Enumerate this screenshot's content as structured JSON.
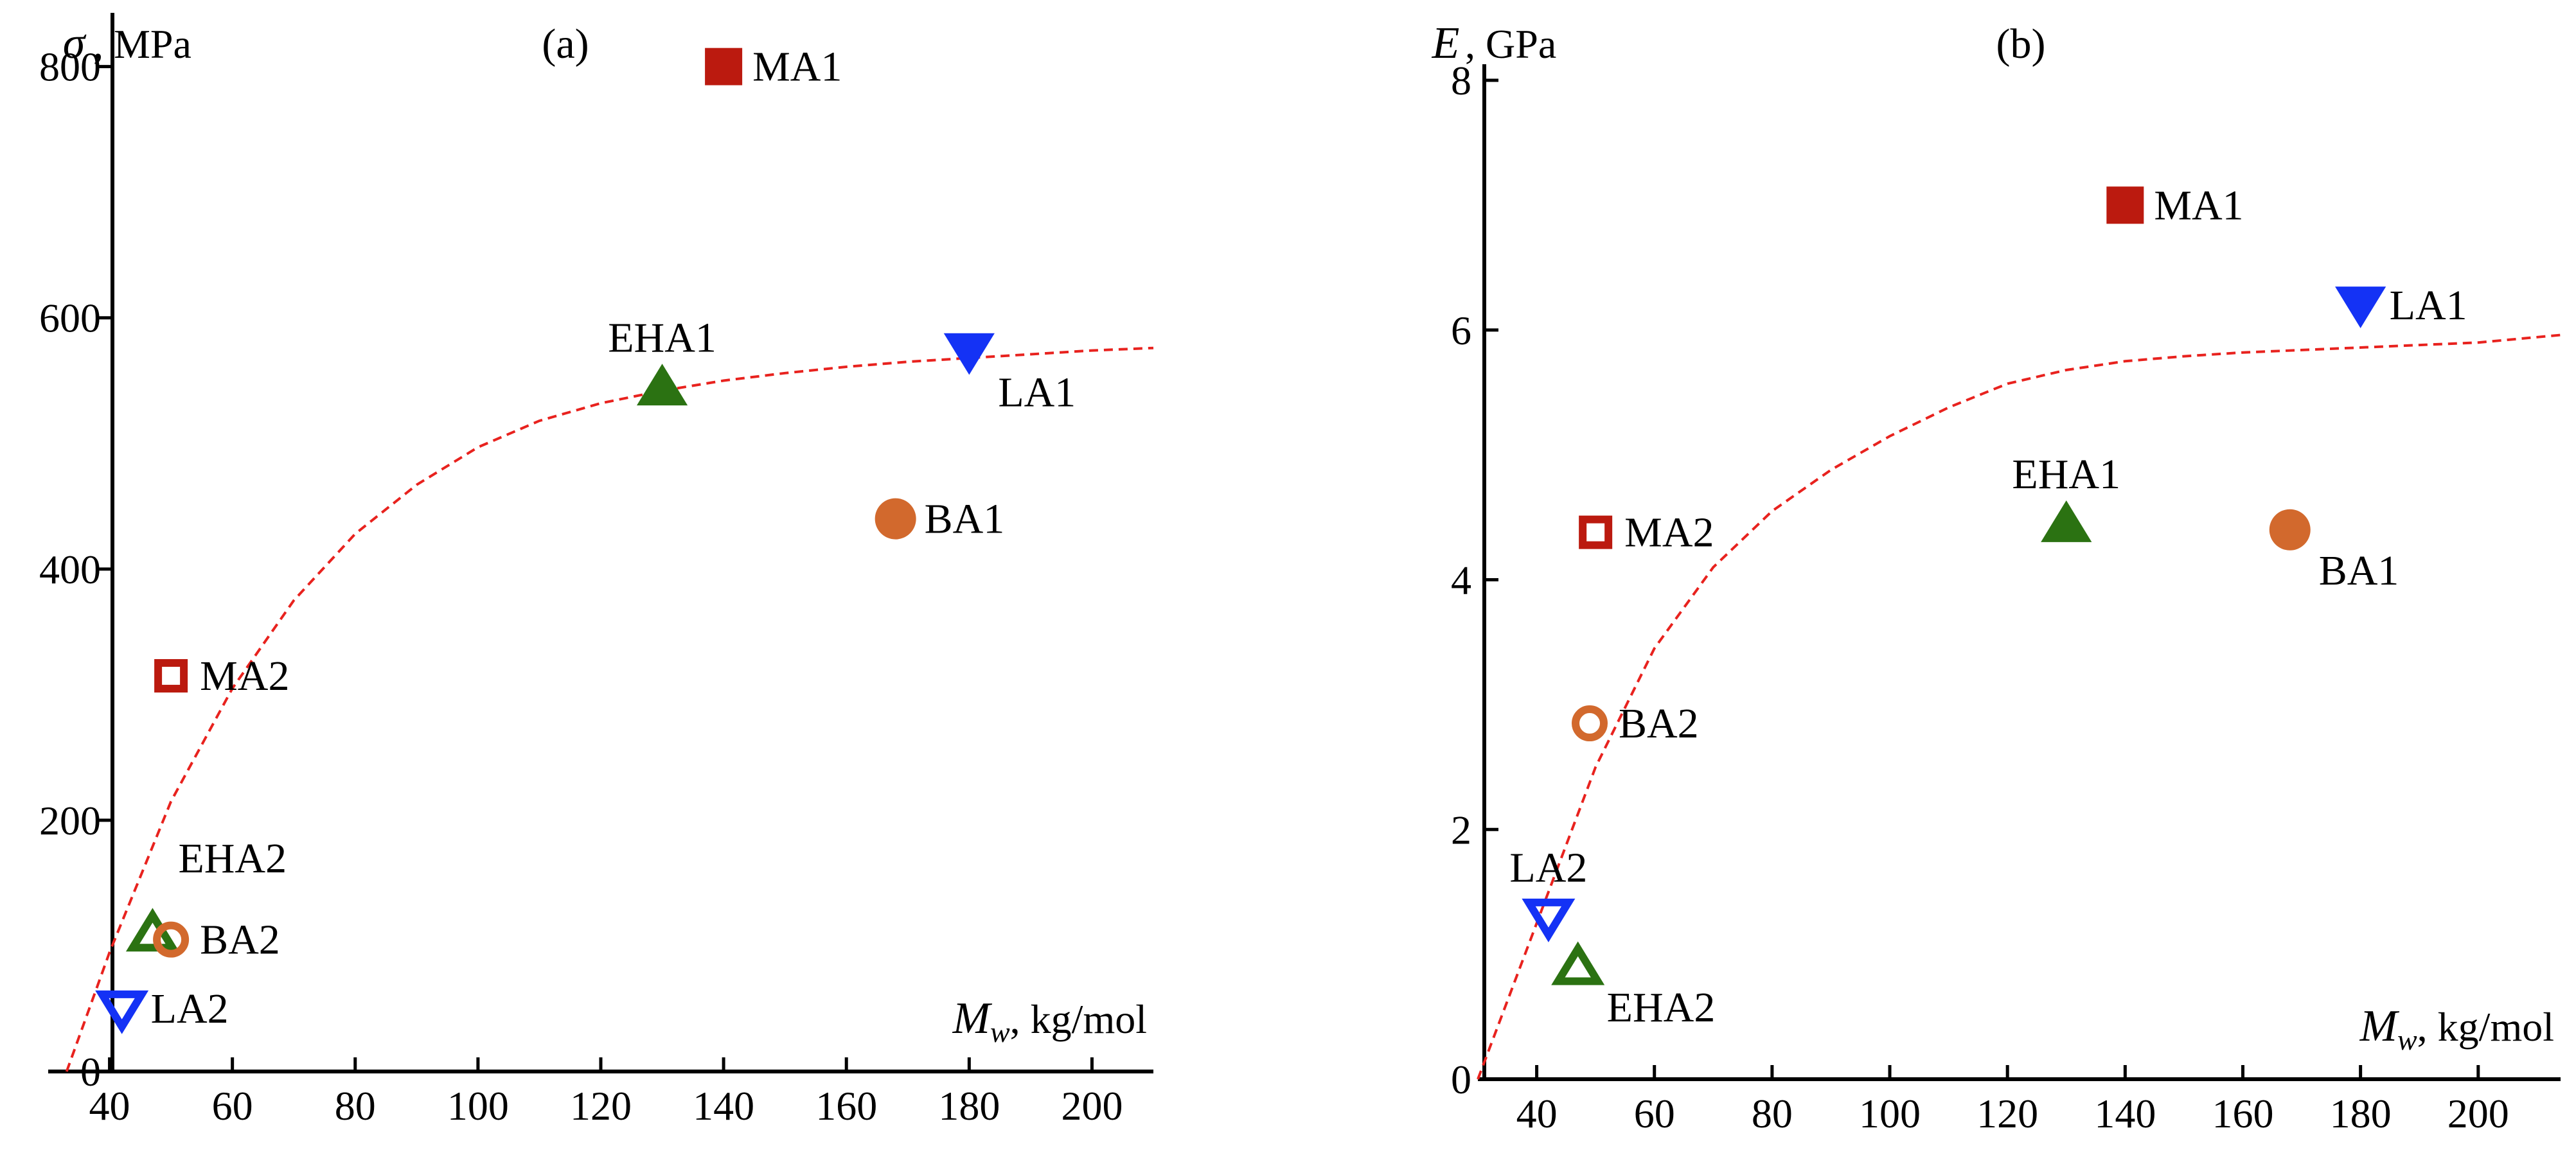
{
  "colors": {
    "MA": "#bb1a0f",
    "LA": "#1432f5",
    "EHA": "#2b7212",
    "BA": "#d2692d",
    "fit": "#e8221e",
    "axis": "#000000"
  },
  "chart_data": [
    {
      "type": "scatter",
      "panel_label": "(a)",
      "ylabel_symbol": "σ",
      "ylabel_unit": ", MPa",
      "xlabel_symbol": "M",
      "xlabel_sub": "w",
      "xlabel_unit": ", kg/mol",
      "xlim": [
        30,
        210
      ],
      "ylim": [
        0,
        830
      ],
      "xticks": [
        40,
        60,
        80,
        100,
        120,
        140,
        160,
        180,
        200
      ],
      "yticks": [
        0,
        200,
        400,
        600,
        800
      ],
      "points": [
        {
          "label": "MA1",
          "x": 140,
          "y": 800,
          "marker": "square",
          "filled": true,
          "color": "MA",
          "label_pos": "right"
        },
        {
          "label": "MA2",
          "x": 50,
          "y": 315,
          "marker": "square",
          "filled": false,
          "color": "MA",
          "label_pos": "right"
        },
        {
          "label": "EHA1",
          "x": 130,
          "y": 545,
          "marker": "triangle-up",
          "filled": true,
          "color": "EHA",
          "label_pos": "above"
        },
        {
          "label": "EHA2",
          "x": 47,
          "y": 110,
          "marker": "triangle-up",
          "filled": false,
          "color": "EHA",
          "label_pos": "above-right"
        },
        {
          "label": "LA1",
          "x": 180,
          "y": 573,
          "marker": "triangle-down",
          "filled": true,
          "color": "LA",
          "label_pos": "below-right"
        },
        {
          "label": "LA2",
          "x": 42,
          "y": 50,
          "marker": "triangle-down",
          "filled": false,
          "color": "LA",
          "label_pos": "right"
        },
        {
          "label": "BA1",
          "x": 168,
          "y": 440,
          "marker": "circle",
          "filled": true,
          "color": "BA",
          "label_pos": "right"
        },
        {
          "label": "BA2",
          "x": 50,
          "y": 105,
          "marker": "circle",
          "filled": false,
          "color": "BA",
          "label_pos": "right"
        }
      ],
      "fit_curve": [
        [
          33,
          0
        ],
        [
          40,
          95
        ],
        [
          50,
          215
        ],
        [
          60,
          305
        ],
        [
          70,
          375
        ],
        [
          80,
          428
        ],
        [
          90,
          467
        ],
        [
          100,
          497
        ],
        [
          110,
          518
        ],
        [
          120,
          532
        ],
        [
          130,
          542
        ],
        [
          140,
          550
        ],
        [
          150,
          556
        ],
        [
          160,
          561
        ],
        [
          170,
          565
        ],
        [
          180,
          568
        ],
        [
          190,
          571
        ],
        [
          200,
          574
        ],
        [
          210,
          576
        ]
      ]
    },
    {
      "type": "scatter",
      "panel_label": "(b)",
      "ylabel_symbol": "E",
      "ylabel_unit": ", GPa",
      "xlabel_symbol": "M",
      "xlabel_sub": "w",
      "xlabel_unit": ", kg/mol",
      "xlim": [
        30,
        214
      ],
      "ylim": [
        0,
        8
      ],
      "xticks": [
        40,
        60,
        80,
        100,
        120,
        140,
        160,
        180,
        200
      ],
      "yticks": [
        0,
        2,
        4,
        6,
        8
      ],
      "points": [
        {
          "label": "MA1",
          "x": 140,
          "y": 7.0,
          "marker": "square",
          "filled": true,
          "color": "MA",
          "label_pos": "right"
        },
        {
          "label": "MA2",
          "x": 50,
          "y": 4.38,
          "marker": "square",
          "filled": false,
          "color": "MA",
          "label_pos": "right"
        },
        {
          "label": "EHA1",
          "x": 130,
          "y": 4.45,
          "marker": "triangle-up",
          "filled": true,
          "color": "EHA",
          "label_pos": "above"
        },
        {
          "label": "EHA2",
          "x": 47,
          "y": 0.9,
          "marker": "triangle-up",
          "filled": false,
          "color": "EHA",
          "label_pos": "below-right"
        },
        {
          "label": "LA1",
          "x": 180,
          "y": 6.2,
          "marker": "triangle-down",
          "filled": true,
          "color": "LA",
          "label_pos": "right"
        },
        {
          "label": "LA2",
          "x": 42,
          "y": 1.3,
          "marker": "triangle-down",
          "filled": false,
          "color": "LA",
          "label_pos": "above"
        },
        {
          "label": "BA1",
          "x": 168,
          "y": 4.4,
          "marker": "circle",
          "filled": true,
          "color": "BA",
          "label_pos": "below-right"
        },
        {
          "label": "BA2",
          "x": 49,
          "y": 2.85,
          "marker": "circle",
          "filled": false,
          "color": "BA",
          "label_pos": "right"
        }
      ],
      "fit_curve": [
        [
          30,
          0
        ],
        [
          40,
          1.25
        ],
        [
          50,
          2.5
        ],
        [
          60,
          3.45
        ],
        [
          70,
          4.1
        ],
        [
          80,
          4.55
        ],
        [
          90,
          4.88
        ],
        [
          100,
          5.15
        ],
        [
          110,
          5.38
        ],
        [
          120,
          5.57
        ],
        [
          130,
          5.68
        ],
        [
          140,
          5.75
        ],
        [
          150,
          5.79
        ],
        [
          160,
          5.82
        ],
        [
          170,
          5.84
        ],
        [
          180,
          5.86
        ],
        [
          190,
          5.88
        ],
        [
          200,
          5.9
        ],
        [
          214,
          5.96
        ]
      ]
    }
  ]
}
